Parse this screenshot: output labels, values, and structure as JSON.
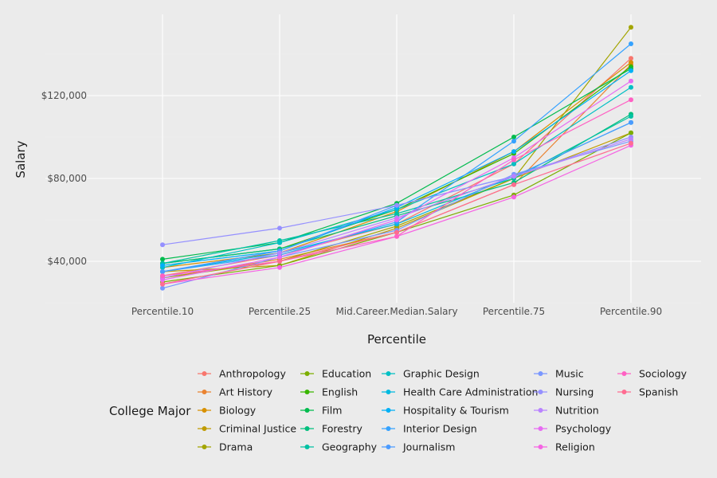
{
  "chart_data": {
    "type": "line",
    "xlabel": "Percentile",
    "ylabel": "Salary",
    "categories": [
      "Percentile.10",
      "Percentile.25",
      "Mid.Career.Median.Salary",
      "Percentile.75",
      "Percentile.90"
    ],
    "y_ticks": [
      40000,
      80000,
      120000
    ],
    "y_tick_labels": [
      "$40,000",
      "$80,000",
      "$120,000"
    ],
    "ylim": [
      23000,
      158000
    ],
    "grid": true,
    "legend": {
      "title": "College Major",
      "position": "bottom"
    },
    "series": [
      {
        "name": "Anthropology",
        "color": "#F8766D",
        "values": [
          33000,
          43000,
          58000,
          87000,
          138000
        ]
      },
      {
        "name": "Art History",
        "color": "#EA8331",
        "values": [
          32000,
          41000,
          54000,
          77000,
          135000
        ]
      },
      {
        "name": "Biology",
        "color": "#D89000",
        "values": [
          37000,
          44000,
          64000,
          93000,
          136000
        ]
      },
      {
        "name": "Criminal Justice",
        "color": "#C09B00",
        "values": [
          35000,
          38000,
          56000,
          80000,
          102000
        ]
      },
      {
        "name": "Drama",
        "color": "#A3A500",
        "values": [
          32000,
          40000,
          57000,
          80000,
          153000
        ]
      },
      {
        "name": "Education",
        "color": "#7CAE00",
        "values": [
          30000,
          38000,
          54000,
          72000,
          102000
        ]
      },
      {
        "name": "English",
        "color": "#39B600",
        "values": [
          39000,
          46000,
          65000,
          92000,
          134000
        ]
      },
      {
        "name": "Film",
        "color": "#00BB4E",
        "values": [
          41000,
          49000,
          68000,
          100000,
          133000
        ]
      },
      {
        "name": "Forestry",
        "color": "#00BF7D",
        "values": [
          39000,
          46000,
          62000,
          78000,
          111000
        ]
      },
      {
        "name": "Geography",
        "color": "#00C1A3",
        "values": [
          39000,
          50000,
          63000,
          80000,
          110000
        ]
      },
      {
        "name": "Graphic Design",
        "color": "#00BFC4",
        "values": [
          37000,
          49000,
          65000,
          87000,
          124000
        ]
      },
      {
        "name": "Health Care Administration",
        "color": "#00BAE0",
        "values": [
          35000,
          44000,
          58000,
          81000,
          107000
        ]
      },
      {
        "name": "Hospitality & Tourism",
        "color": "#00B0F6",
        "values": [
          38000,
          45000,
          66000,
          93000,
          132000
        ]
      },
      {
        "name": "Interior Design",
        "color": "#35A2FF",
        "values": [
          35000,
          43000,
          59000,
          98000,
          145000
        ]
      },
      {
        "name": "Journalism",
        "color": "#4B9BFF",
        "values": [
          35000,
          45000,
          67000,
          81000,
          107000
        ]
      },
      {
        "name": "Music",
        "color": "#7997FF",
        "values": [
          27000,
          42000,
          55000,
          82000,
          98000
        ]
      },
      {
        "name": "Nursing",
        "color": "#9590FF",
        "values": [
          48000,
          56000,
          67000,
          81000,
          100000
        ]
      },
      {
        "name": "Nutrition",
        "color": "#B983FF",
        "values": [
          32000,
          44000,
          61000,
          81000,
          99000
        ]
      },
      {
        "name": "Psychology",
        "color": "#E76BF3",
        "values": [
          31000,
          42000,
          60000,
          90000,
          127000
        ]
      },
      {
        "name": "Religion",
        "color": "#F564E3",
        "values": [
          29000,
          37000,
          52000,
          71000,
          96000
        ]
      },
      {
        "name": "Sociology",
        "color": "#FF61C3",
        "values": [
          33000,
          40000,
          52000,
          89000,
          118000
        ]
      },
      {
        "name": "Spanish",
        "color": "#FF6C91",
        "values": [
          29000,
          40000,
          54000,
          77000,
          97000
        ]
      }
    ]
  }
}
